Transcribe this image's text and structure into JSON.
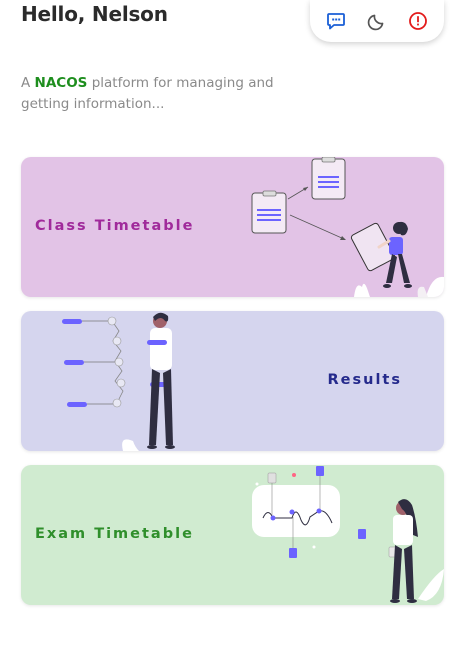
{
  "header": {
    "greeting": "Hello, Nelson"
  },
  "toolbar": {
    "icons": [
      "feedback-icon",
      "dark-mode-icon",
      "info-icon"
    ],
    "colors": {
      "feedback": "#1a5fd6",
      "moon": "#555555",
      "info": "#e31b1b"
    }
  },
  "tagline": {
    "prefix": "A",
    "brand": "NACOS",
    "suffix": "platform for managing and getting information..."
  },
  "cards": [
    {
      "label": "Class Timetable",
      "bg": "#e2c3e6",
      "text_color": "#a02a9b"
    },
    {
      "label": "Results",
      "bg": "#d5d5ee",
      "text_color": "#252a8c"
    },
    {
      "label": "Exam Timetable",
      "bg": "#d0ebd0",
      "text_color": "#2f8f2b"
    }
  ]
}
